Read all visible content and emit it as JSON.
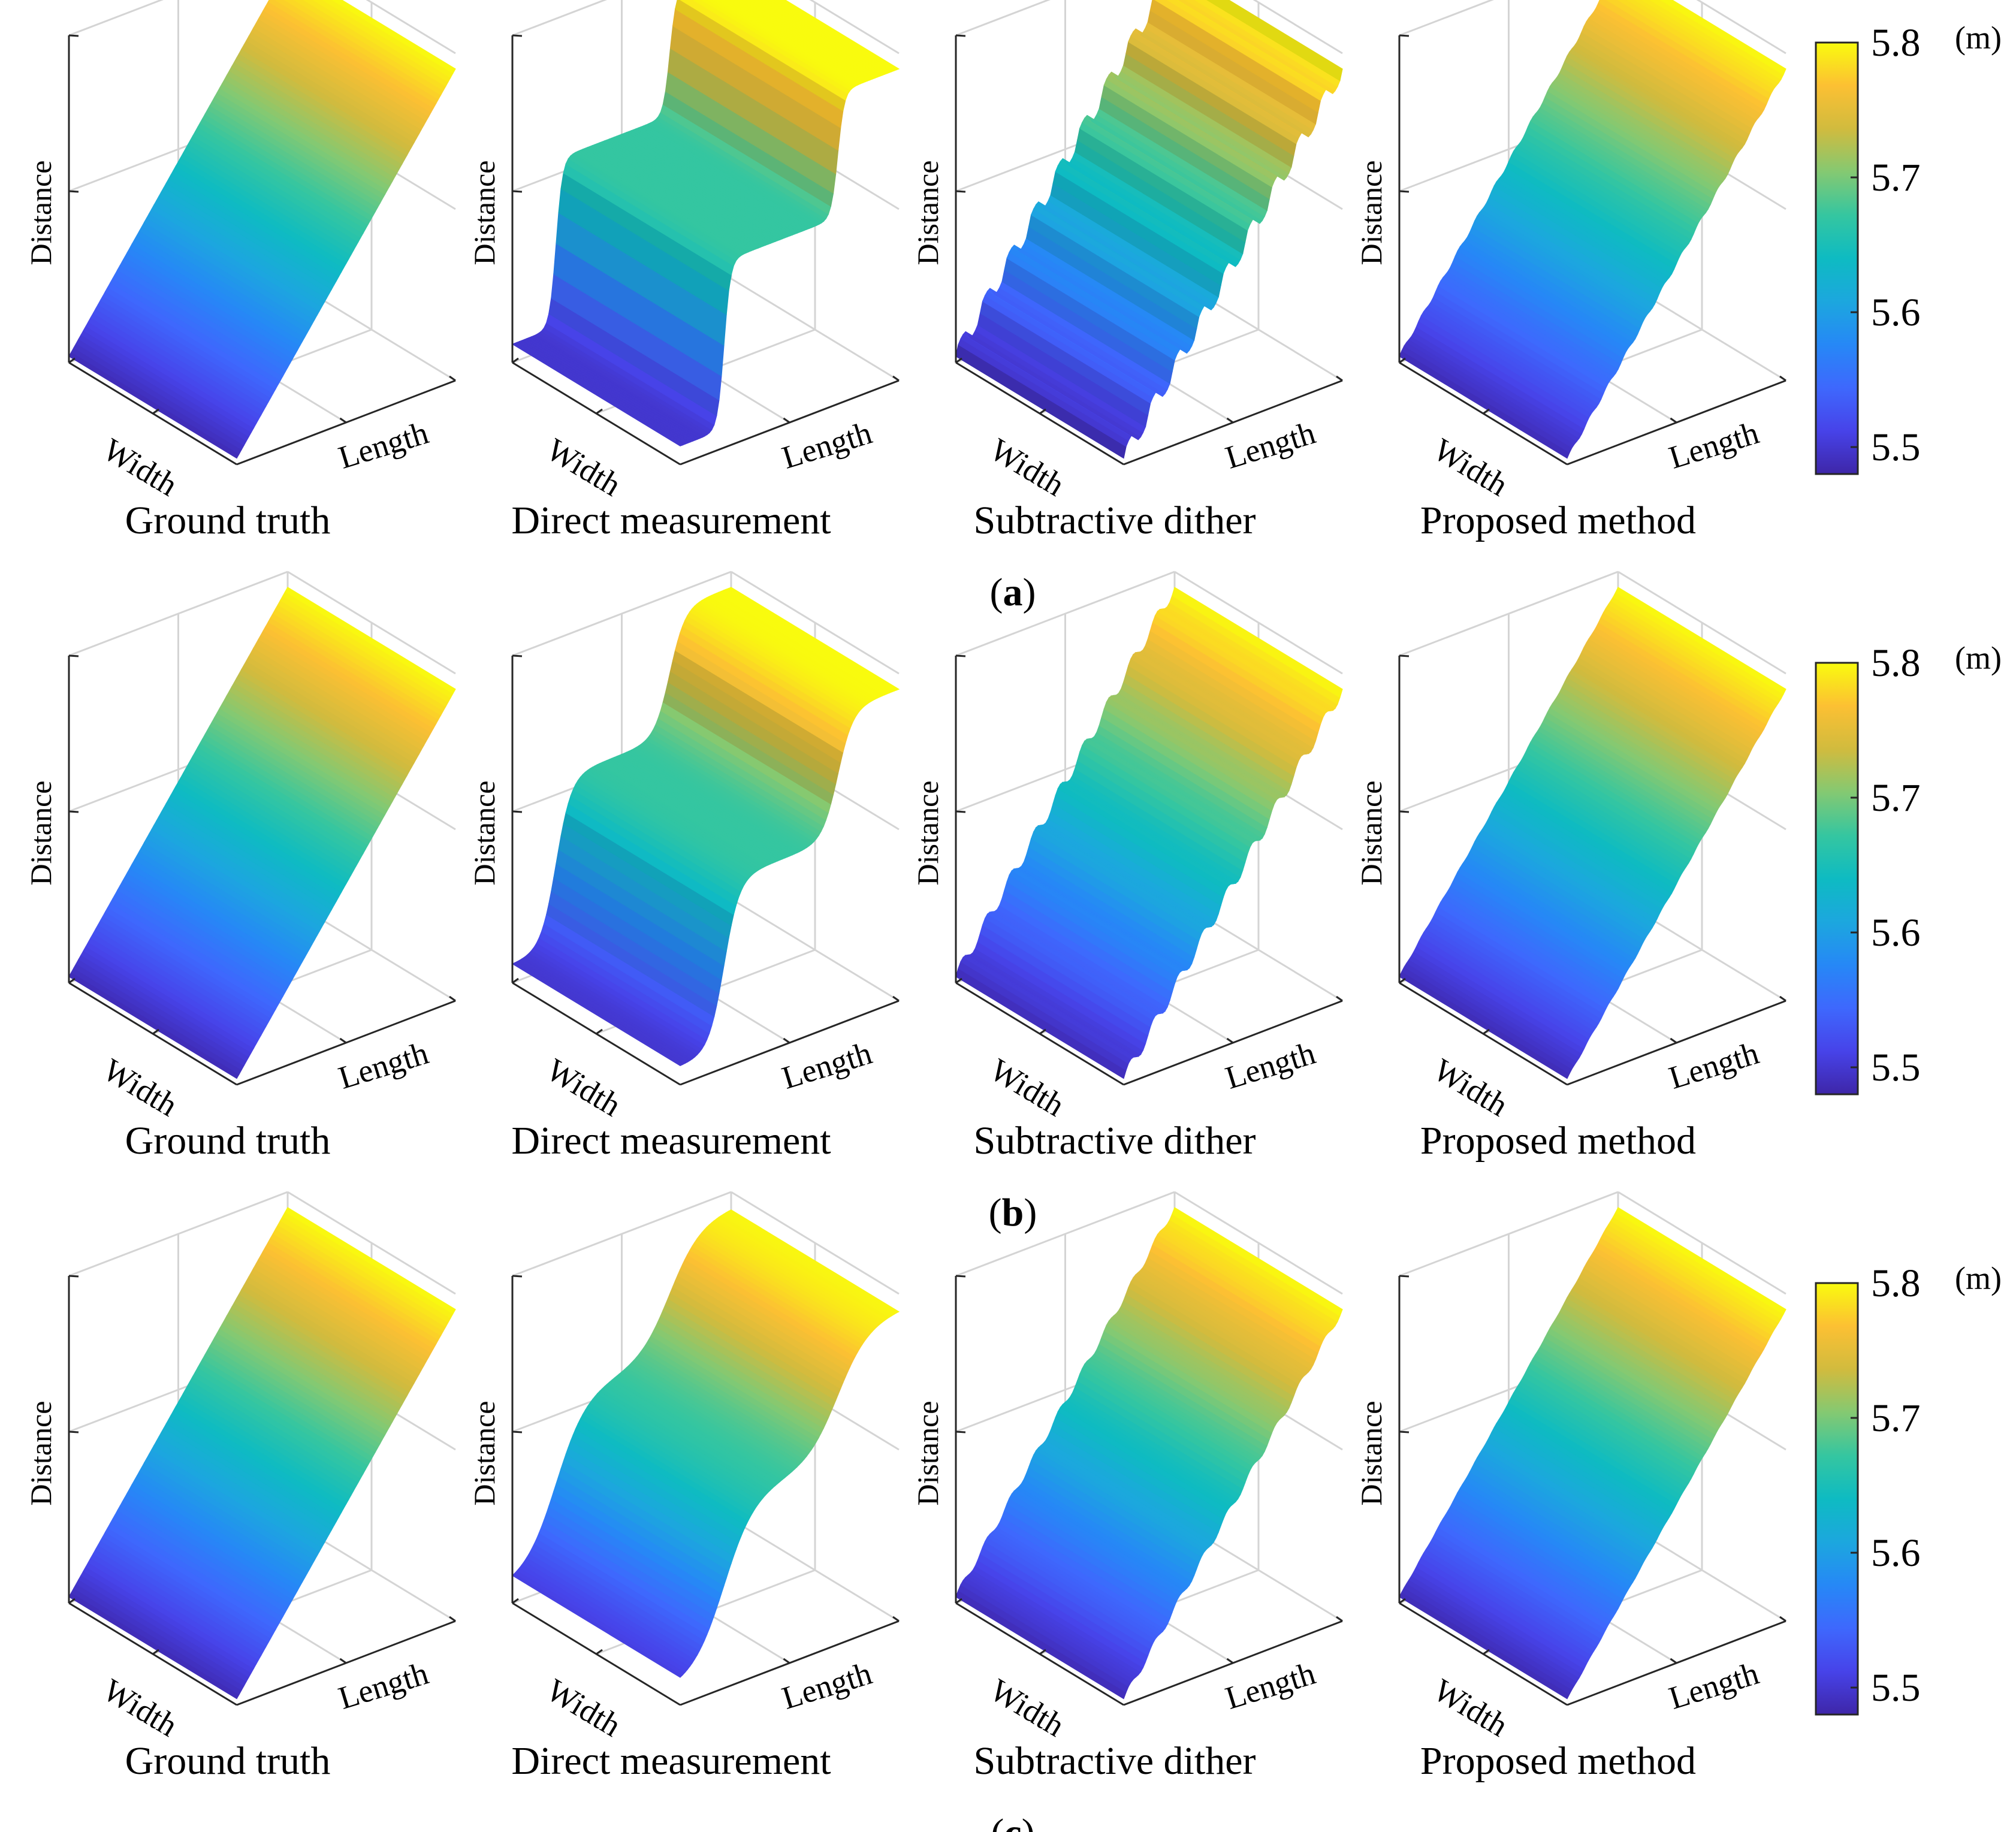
{
  "chart_data": {
    "type": "surface",
    "colormap": "parula",
    "colorbar": {
      "tick_labels": [
        "5.5",
        "5.6",
        "5.7",
        "5.8"
      ],
      "ticks": [
        5.5,
        5.6,
        5.7,
        5.8
      ],
      "range": [
        5.48,
        5.8
      ],
      "unit": "(m)"
    },
    "axis_labels": {
      "distance": "Distance",
      "width": "Width",
      "length": "Length"
    },
    "methods": [
      "Ground truth",
      "Direct measurement",
      "Subtractive dither",
      "Proposed method"
    ],
    "rows": [
      {
        "label": "(a)",
        "letter": "a",
        "distance_range_m": [
          5.48,
          5.8
        ],
        "profiles": [
          "linear ramp",
          "two-level staircase (sharp steps)",
          "fine staircase (sharp)",
          "linear ramp with slight ripple"
        ]
      },
      {
        "label": "(b)",
        "letter": "b",
        "distance_range_m": [
          5.48,
          5.8
        ],
        "profiles": [
          "linear ramp",
          "two-level staircase (slightly smoothed)",
          "fine staircase (smoothed)",
          "linear ramp"
        ]
      },
      {
        "label": "(c)",
        "letter": "c",
        "distance_range_m": [
          5.48,
          5.8
        ],
        "profiles": [
          "linear ramp",
          "two-level staircase (smooth)",
          "fine ripple",
          "linear ramp"
        ]
      }
    ]
  }
}
